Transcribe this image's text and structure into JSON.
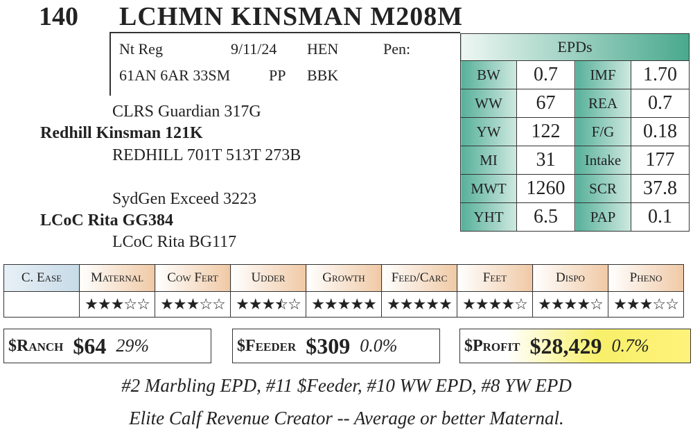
{
  "header": {
    "lot": "140",
    "name": "LCHMN KINSMAN M208M"
  },
  "info": {
    "row1": [
      "Nt Reg",
      "9/11/24",
      "HEN",
      "Pen:"
    ],
    "row2": [
      "61AN 6AR 33SM",
      "PP",
      "BBK"
    ]
  },
  "pedigree": {
    "sire_sire": "CLRS Guardian 317G",
    "sire": "Redhill Kinsman 121K",
    "sire_dam": "REDHILL 701T 513T 273B",
    "dam_sire": "SydGen Exceed 3223",
    "dam": "LCoC Rita GG384",
    "dam_dam": "LCoC Rita BG117"
  },
  "epds": {
    "title": "EPDs",
    "rows": [
      [
        "BW",
        "0.7",
        "IMF",
        "1.70"
      ],
      [
        "WW",
        "67",
        "REA",
        "0.7"
      ],
      [
        "YW",
        "122",
        "F/G",
        "0.18"
      ],
      [
        "MI",
        "31",
        "Intake",
        "177"
      ],
      [
        "MWT",
        "1260",
        "SCR",
        "37.8"
      ],
      [
        "YHT",
        "6.5",
        "PAP",
        "0.1"
      ]
    ]
  },
  "ratings": {
    "max": 5,
    "headers": [
      "C. Ease",
      "Maternal",
      "Cow Fert",
      "Udder",
      "Growth",
      "Feed/Carc",
      "Feet",
      "Dispo",
      "Pheno"
    ],
    "values": [
      null,
      3,
      3,
      3.5,
      5,
      5,
      4,
      4,
      3
    ]
  },
  "indexes": [
    {
      "label": "$Ranch",
      "value": "$64",
      "pct": "29%"
    },
    {
      "label": "$Feeder",
      "value": "$309",
      "pct": "0.0%"
    },
    {
      "label": "$Profit",
      "value": "$28,429",
      "pct": "0.7%"
    }
  ],
  "notes": [
    "#2 Marbling EPD, #11 $Feeder, #10 WW EPD, #8 YW EPD",
    "Elite Calf Revenue Creator -- Average or better Maternal."
  ]
}
